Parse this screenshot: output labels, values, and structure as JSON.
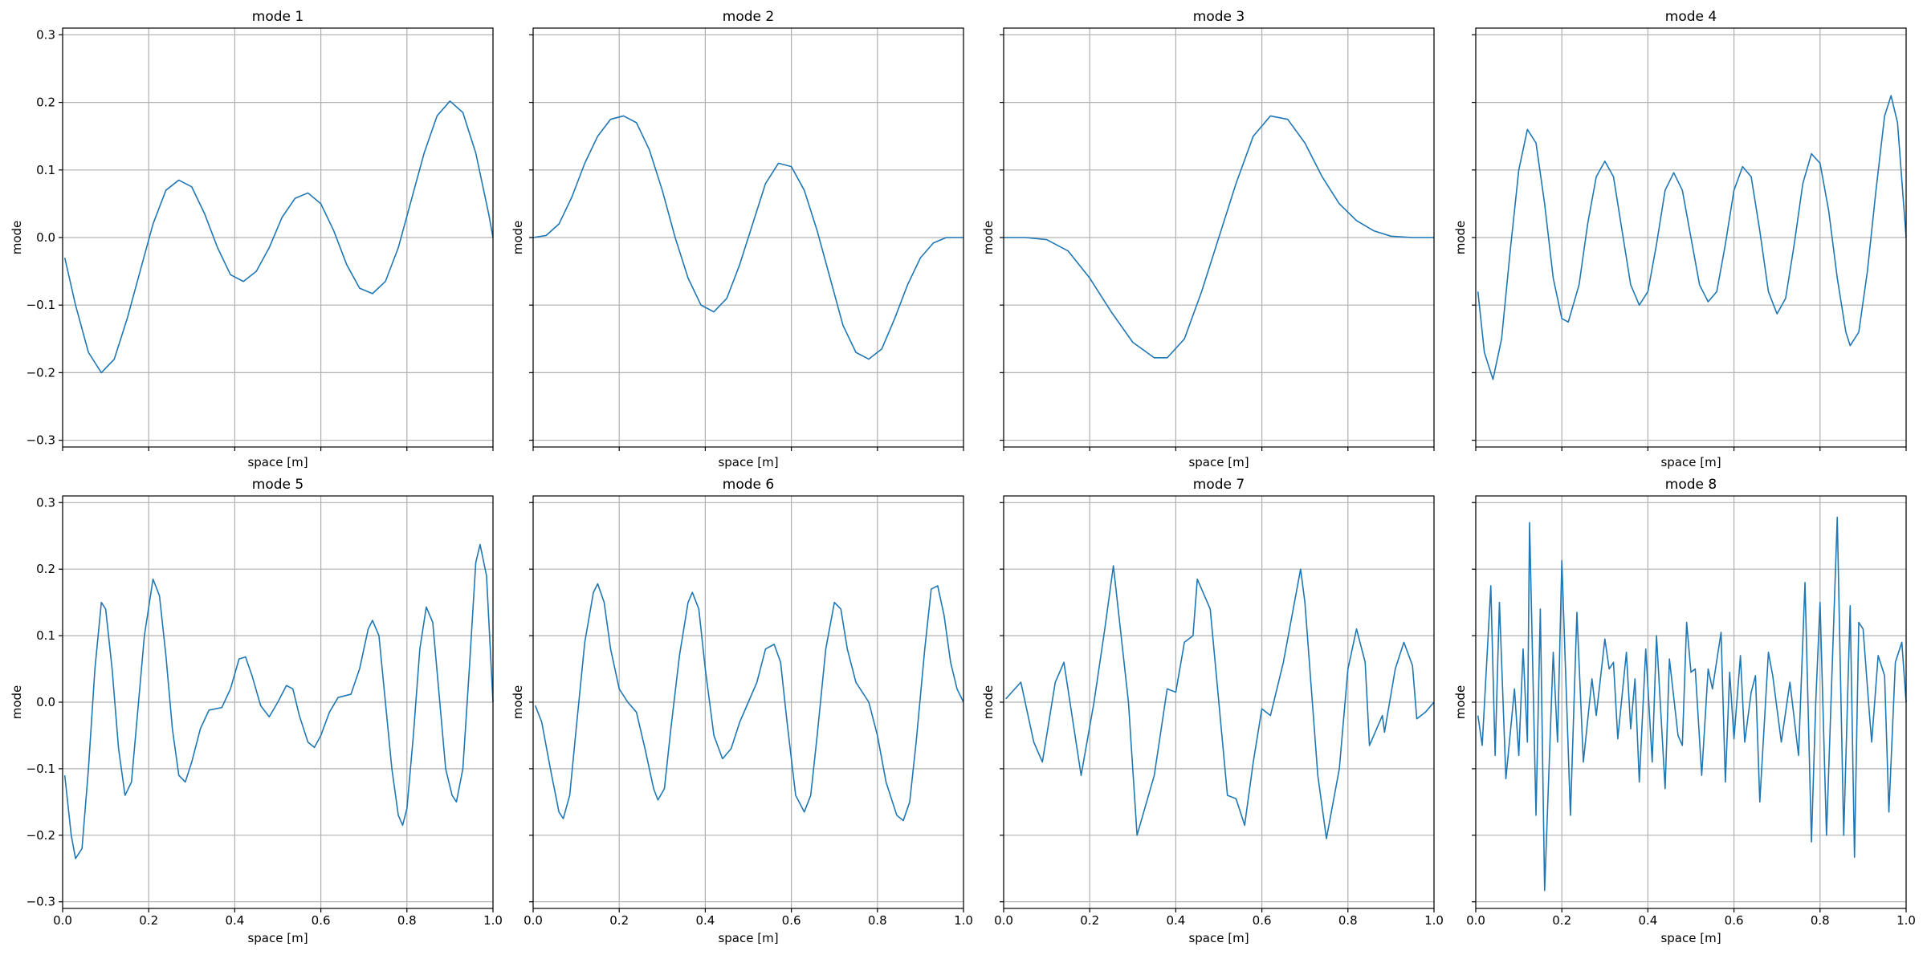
{
  "chart_data": [
    {
      "type": "line",
      "title": "mode 1",
      "xlabel": "space [m]",
      "ylabel": "mode",
      "color": "#1f77b4",
      "grid": true,
      "show_xticklabels": false,
      "show_yticklabels": true,
      "xlim": [
        0,
        1
      ],
      "ylim": [
        -0.31,
        0.31
      ],
      "xticks": [
        0,
        0.2,
        0.4,
        0.6,
        0.8,
        1
      ],
      "yticks": [
        {
          "value": -0.3,
          "label": "−0.3"
        },
        {
          "value": -0.2,
          "label": "−0.2"
        },
        {
          "value": -0.1,
          "label": "−0.1"
        },
        {
          "value": 0,
          "label": "0.0"
        },
        0.1,
        0.2,
        0.3
      ],
      "x": [
        0.005,
        0.03,
        0.06,
        0.09,
        0.12,
        0.15,
        0.18,
        0.21,
        0.24,
        0.27,
        0.3,
        0.33,
        0.36,
        0.39,
        0.42,
        0.45,
        0.48,
        0.51,
        0.54,
        0.57,
        0.6,
        0.63,
        0.66,
        0.69,
        0.72,
        0.75,
        0.78,
        0.81,
        0.84,
        0.87,
        0.9,
        0.93,
        0.96,
        0.99,
        1.0
      ],
      "values": [
        -0.03,
        -0.1,
        -0.17,
        -0.2,
        -0.18,
        -0.12,
        -0.05,
        0.02,
        0.07,
        0.085,
        0.075,
        0.035,
        -0.015,
        -0.055,
        -0.065,
        -0.05,
        -0.015,
        0.03,
        0.058,
        0.066,
        0.05,
        0.01,
        -0.04,
        -0.075,
        -0.083,
        -0.065,
        -0.015,
        0.055,
        0.125,
        0.18,
        0.202,
        0.185,
        0.125,
        0.035,
        0.0
      ]
    },
    {
      "type": "line",
      "title": "mode 2",
      "xlabel": "space [m]",
      "ylabel": "mode",
      "color": "#1f77b4",
      "grid": true,
      "show_xticklabels": false,
      "show_yticklabels": false,
      "xlim": [
        0,
        1
      ],
      "ylim": [
        -0.31,
        0.31
      ],
      "xticks": [
        0,
        0.2,
        0.4,
        0.6,
        0.8,
        1
      ],
      "yticks": [
        -0.3,
        -0.2,
        -0.1,
        0,
        0.1,
        0.2,
        0.3
      ],
      "x": [
        0,
        0.03,
        0.06,
        0.09,
        0.12,
        0.15,
        0.18,
        0.21,
        0.24,
        0.27,
        0.3,
        0.33,
        0.36,
        0.39,
        0.42,
        0.45,
        0.48,
        0.51,
        0.54,
        0.57,
        0.6,
        0.63,
        0.66,
        0.69,
        0.72,
        0.75,
        0.78,
        0.81,
        0.84,
        0.87,
        0.9,
        0.93,
        0.96,
        1.0
      ],
      "values": [
        0,
        0.003,
        0.02,
        0.06,
        0.11,
        0.15,
        0.175,
        0.18,
        0.17,
        0.13,
        0.07,
        0.0,
        -0.06,
        -0.1,
        -0.11,
        -0.09,
        -0.04,
        0.02,
        0.08,
        0.11,
        0.105,
        0.07,
        0.01,
        -0.06,
        -0.13,
        -0.17,
        -0.18,
        -0.165,
        -0.12,
        -0.07,
        -0.03,
        -0.008,
        0.0,
        0.0
      ]
    },
    {
      "type": "line",
      "title": "mode 3",
      "xlabel": "space [m]",
      "ylabel": "mode",
      "color": "#1f77b4",
      "grid": true,
      "show_xticklabels": false,
      "show_yticklabels": false,
      "xlim": [
        0,
        1
      ],
      "ylim": [
        -0.31,
        0.31
      ],
      "xticks": [
        0,
        0.2,
        0.4,
        0.6,
        0.8,
        1
      ],
      "yticks": [
        -0.3,
        -0.2,
        -0.1,
        0,
        0.1,
        0.2,
        0.3
      ],
      "x": [
        0,
        0.05,
        0.1,
        0.15,
        0.2,
        0.25,
        0.3,
        0.35,
        0.38,
        0.42,
        0.46,
        0.5,
        0.54,
        0.58,
        0.62,
        0.66,
        0.7,
        0.74,
        0.78,
        0.82,
        0.86,
        0.9,
        0.95,
        1.0
      ],
      "values": [
        0,
        0,
        -0.003,
        -0.02,
        -0.06,
        -0.11,
        -0.155,
        -0.178,
        -0.178,
        -0.15,
        -0.08,
        0.0,
        0.08,
        0.15,
        0.18,
        0.175,
        0.14,
        0.09,
        0.05,
        0.025,
        0.01,
        0.002,
        0,
        0
      ]
    },
    {
      "type": "line",
      "title": "mode 4",
      "xlabel": "space [m]",
      "ylabel": "mode",
      "color": "#1f77b4",
      "grid": true,
      "show_xticklabels": false,
      "show_yticklabels": false,
      "xlim": [
        0,
        1
      ],
      "ylim": [
        -0.31,
        0.31
      ],
      "xticks": [
        0,
        0.2,
        0.4,
        0.6,
        0.8,
        1
      ],
      "yticks": [
        -0.3,
        -0.2,
        -0.1,
        0,
        0.1,
        0.2,
        0.3
      ],
      "x": [
        0.005,
        0.02,
        0.04,
        0.06,
        0.08,
        0.1,
        0.12,
        0.14,
        0.16,
        0.18,
        0.2,
        0.215,
        0.24,
        0.26,
        0.28,
        0.3,
        0.32,
        0.34,
        0.36,
        0.38,
        0.4,
        0.42,
        0.44,
        0.46,
        0.48,
        0.5,
        0.52,
        0.54,
        0.56,
        0.58,
        0.6,
        0.62,
        0.64,
        0.66,
        0.68,
        0.7,
        0.72,
        0.74,
        0.76,
        0.78,
        0.8,
        0.82,
        0.84,
        0.86,
        0.87,
        0.89,
        0.91,
        0.93,
        0.95,
        0.965,
        0.98,
        1.0
      ],
      "values": [
        -0.08,
        -0.17,
        -0.21,
        -0.15,
        -0.02,
        0.1,
        0.16,
        0.14,
        0.05,
        -0.06,
        -0.12,
        -0.125,
        -0.07,
        0.02,
        0.09,
        0.113,
        0.09,
        0.01,
        -0.07,
        -0.1,
        -0.08,
        -0.01,
        0.07,
        0.096,
        0.07,
        0.0,
        -0.07,
        -0.095,
        -0.08,
        -0.01,
        0.07,
        0.105,
        0.09,
        0.01,
        -0.08,
        -0.113,
        -0.09,
        -0.01,
        0.08,
        0.124,
        0.11,
        0.04,
        -0.06,
        -0.14,
        -0.16,
        -0.14,
        -0.05,
        0.07,
        0.18,
        0.21,
        0.17,
        0.0
      ]
    },
    {
      "type": "line",
      "title": "mode 5",
      "xlabel": "space [m]",
      "ylabel": "mode",
      "color": "#1f77b4",
      "grid": true,
      "show_xticklabels": true,
      "show_yticklabels": true,
      "xlim": [
        0,
        1
      ],
      "ylim": [
        -0.31,
        0.31
      ],
      "xticks": [
        {
          "value": 0,
          "label": "0.0"
        },
        0.2,
        0.4,
        0.6,
        0.8,
        {
          "value": 1,
          "label": "1.0"
        }
      ],
      "yticks": [
        {
          "value": -0.3,
          "label": "−0.3"
        },
        {
          "value": -0.2,
          "label": "−0.2"
        },
        {
          "value": -0.1,
          "label": "−0.1"
        },
        {
          "value": 0,
          "label": "0.0"
        },
        0.1,
        0.2,
        0.3
      ],
      "x": [
        0.005,
        0.02,
        0.03,
        0.045,
        0.06,
        0.075,
        0.09,
        0.1,
        0.115,
        0.13,
        0.145,
        0.16,
        0.175,
        0.19,
        0.21,
        0.225,
        0.24,
        0.255,
        0.27,
        0.285,
        0.3,
        0.32,
        0.34,
        0.37,
        0.39,
        0.41,
        0.425,
        0.44,
        0.46,
        0.48,
        0.5,
        0.52,
        0.535,
        0.55,
        0.57,
        0.585,
        0.6,
        0.62,
        0.64,
        0.67,
        0.69,
        0.71,
        0.72,
        0.735,
        0.75,
        0.765,
        0.78,
        0.79,
        0.8,
        0.815,
        0.83,
        0.845,
        0.86,
        0.875,
        0.89,
        0.905,
        0.915,
        0.93,
        0.945,
        0.96,
        0.97,
        0.985,
        1.0
      ],
      "values": [
        -0.11,
        -0.2,
        -0.235,
        -0.22,
        -0.1,
        0.05,
        0.15,
        0.14,
        0.05,
        -0.07,
        -0.14,
        -0.12,
        -0.01,
        0.1,
        0.185,
        0.16,
        0.07,
        -0.04,
        -0.11,
        -0.12,
        -0.09,
        -0.04,
        -0.012,
        -0.008,
        0.02,
        0.065,
        0.068,
        0.04,
        -0.005,
        -0.022,
        0.0,
        0.025,
        0.02,
        -0.02,
        -0.06,
        -0.068,
        -0.05,
        -0.015,
        0.007,
        0.012,
        0.05,
        0.11,
        0.123,
        0.1,
        0.0,
        -0.1,
        -0.17,
        -0.185,
        -0.16,
        -0.05,
        0.08,
        0.143,
        0.12,
        0.01,
        -0.1,
        -0.14,
        -0.15,
        -0.1,
        0.05,
        0.21,
        0.237,
        0.19,
        0.0
      ]
    },
    {
      "type": "line",
      "title": "mode 6",
      "xlabel": "space [m]",
      "ylabel": "mode",
      "color": "#1f77b4",
      "grid": true,
      "show_xticklabels": true,
      "show_yticklabels": false,
      "xlim": [
        0,
        1
      ],
      "ylim": [
        -0.31,
        0.31
      ],
      "xticks": [
        {
          "value": 0,
          "label": "0.0"
        },
        0.2,
        0.4,
        0.6,
        0.8,
        {
          "value": 1,
          "label": "1.0"
        }
      ],
      "yticks": [
        -0.3,
        -0.2,
        -0.1,
        0,
        0.1,
        0.2,
        0.3
      ],
      "x": [
        0.005,
        0.02,
        0.04,
        0.06,
        0.07,
        0.085,
        0.1,
        0.12,
        0.14,
        0.15,
        0.165,
        0.18,
        0.2,
        0.22,
        0.24,
        0.26,
        0.28,
        0.29,
        0.305,
        0.32,
        0.34,
        0.36,
        0.37,
        0.385,
        0.4,
        0.42,
        0.44,
        0.46,
        0.48,
        0.5,
        0.52,
        0.54,
        0.56,
        0.575,
        0.59,
        0.61,
        0.63,
        0.645,
        0.66,
        0.68,
        0.7,
        0.715,
        0.73,
        0.75,
        0.78,
        0.8,
        0.82,
        0.845,
        0.86,
        0.875,
        0.89,
        0.91,
        0.925,
        0.94,
        0.955,
        0.97,
        0.985,
        1.0
      ],
      "values": [
        -0.005,
        -0.03,
        -0.1,
        -0.165,
        -0.175,
        -0.14,
        -0.04,
        0.09,
        0.165,
        0.178,
        0.15,
        0.08,
        0.02,
        0.0,
        -0.015,
        -0.07,
        -0.13,
        -0.147,
        -0.13,
        -0.04,
        0.07,
        0.15,
        0.165,
        0.14,
        0.05,
        -0.05,
        -0.085,
        -0.07,
        -0.03,
        0.0,
        0.03,
        0.08,
        0.087,
        0.06,
        -0.03,
        -0.14,
        -0.165,
        -0.14,
        -0.05,
        0.08,
        0.15,
        0.14,
        0.08,
        0.03,
        0.0,
        -0.05,
        -0.12,
        -0.17,
        -0.178,
        -0.15,
        -0.06,
        0.08,
        0.17,
        0.175,
        0.13,
        0.06,
        0.02,
        0.0
      ]
    },
    {
      "type": "line",
      "title": "mode 7",
      "xlabel": "space [m]",
      "ylabel": "mode",
      "color": "#1f77b4",
      "grid": true,
      "show_xticklabels": true,
      "show_yticklabels": false,
      "xlim": [
        0,
        1
      ],
      "ylim": [
        -0.31,
        0.31
      ],
      "xticks": [
        {
          "value": 0,
          "label": "0.0"
        },
        0.2,
        0.4,
        0.6,
        0.8,
        {
          "value": 1,
          "label": "1.0"
        }
      ],
      "yticks": [
        -0.3,
        -0.2,
        -0.1,
        0,
        0.1,
        0.2,
        0.3
      ],
      "x": [
        0.005,
        0.04,
        0.07,
        0.09,
        0.12,
        0.14,
        0.18,
        0.21,
        0.235,
        0.255,
        0.29,
        0.31,
        0.35,
        0.38,
        0.4,
        0.42,
        0.44,
        0.45,
        0.48,
        0.5,
        0.52,
        0.54,
        0.56,
        0.58,
        0.6,
        0.62,
        0.65,
        0.69,
        0.7,
        0.73,
        0.75,
        0.78,
        0.8,
        0.82,
        0.84,
        0.85,
        0.88,
        0.885,
        0.91,
        0.93,
        0.95,
        0.96,
        0.98,
        1.0
      ],
      "values": [
        0.005,
        0.03,
        -0.06,
        -0.09,
        0.03,
        0.06,
        -0.11,
        0.0,
        0.11,
        0.205,
        0.0,
        -0.2,
        -0.11,
        0.02,
        0.015,
        0.09,
        0.1,
        0.185,
        0.14,
        0.0,
        -0.14,
        -0.145,
        -0.185,
        -0.09,
        -0.01,
        -0.02,
        0.06,
        0.2,
        0.15,
        -0.11,
        -0.205,
        -0.1,
        0.05,
        0.11,
        0.06,
        -0.065,
        -0.02,
        -0.045,
        0.05,
        0.09,
        0.055,
        -0.025,
        -0.015,
        0.0
      ]
    },
    {
      "type": "line",
      "title": "mode 8",
      "xlabel": "space [m]",
      "ylabel": "mode",
      "color": "#1f77b4",
      "grid": true,
      "show_xticklabels": true,
      "show_yticklabels": false,
      "xlim": [
        0,
        1
      ],
      "ylim": [
        -0.31,
        0.31
      ],
      "xticks": [
        {
          "value": 0,
          "label": "0.0"
        },
        0.2,
        0.4,
        0.6,
        0.8,
        {
          "value": 1,
          "label": "1.0"
        }
      ],
      "yticks": [
        -0.3,
        -0.2,
        -0.1,
        0,
        0.1,
        0.2,
        0.3
      ],
      "x": [
        0.005,
        0.015,
        0.035,
        0.045,
        0.055,
        0.07,
        0.09,
        0.1,
        0.11,
        0.12,
        0.125,
        0.14,
        0.15,
        0.16,
        0.18,
        0.19,
        0.2,
        0.22,
        0.235,
        0.25,
        0.27,
        0.28,
        0.3,
        0.31,
        0.32,
        0.33,
        0.35,
        0.36,
        0.37,
        0.38,
        0.395,
        0.41,
        0.42,
        0.44,
        0.45,
        0.47,
        0.48,
        0.49,
        0.5,
        0.51,
        0.525,
        0.54,
        0.55,
        0.57,
        0.58,
        0.59,
        0.6,
        0.615,
        0.625,
        0.64,
        0.65,
        0.66,
        0.68,
        0.69,
        0.71,
        0.73,
        0.75,
        0.765,
        0.78,
        0.79,
        0.8,
        0.815,
        0.84,
        0.855,
        0.87,
        0.88,
        0.89,
        0.9,
        0.915,
        0.92,
        0.935,
        0.95,
        0.96,
        0.975,
        0.99,
        1.0
      ],
      "values": [
        -0.02,
        -0.065,
        0.175,
        -0.08,
        0.15,
        -0.115,
        0.02,
        -0.08,
        0.08,
        -0.06,
        0.27,
        -0.17,
        0.14,
        -0.283,
        0.075,
        -0.06,
        0.213,
        -0.17,
        0.135,
        -0.09,
        0.035,
        -0.02,
        0.095,
        0.05,
        0.06,
        -0.055,
        0.075,
        -0.04,
        0.035,
        -0.12,
        0.08,
        -0.09,
        0.1,
        -0.13,
        0.065,
        -0.05,
        -0.065,
        0.12,
        0.045,
        0.05,
        -0.11,
        0.05,
        0.02,
        0.105,
        -0.12,
        0.045,
        -0.055,
        0.07,
        -0.06,
        0.015,
        0.04,
        -0.15,
        0.075,
        0.04,
        -0.06,
        0.03,
        -0.08,
        0.18,
        -0.21,
        0.0,
        0.15,
        -0.2,
        0.278,
        -0.2,
        0.145,
        -0.233,
        0.12,
        0.11,
        -0.02,
        -0.06,
        0.07,
        0.04,
        -0.165,
        0.06,
        0.09,
        0.0
      ]
    }
  ]
}
